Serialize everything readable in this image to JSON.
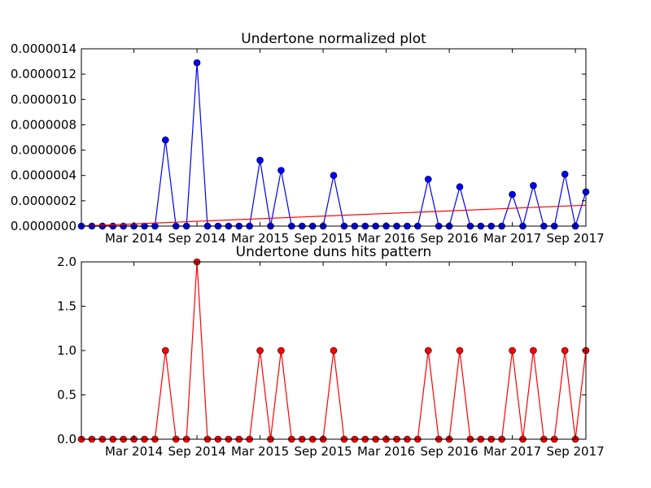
{
  "chart_data": [
    {
      "type": "line",
      "title": "Undertone normalized plot",
      "xlabel": "",
      "ylabel": "",
      "x_unit": "month",
      "xlim": [
        "2013-10",
        "2017-10"
      ],
      "ylim": [
        0,
        1.4e-06
      ],
      "grid": false,
      "yticks": [
        {
          "value": 0,
          "label": "0.0000000"
        },
        {
          "value": 2e-07,
          "label": "0.0000002"
        },
        {
          "value": 4e-07,
          "label": "0.0000004"
        },
        {
          "value": 6e-07,
          "label": "0.0000006"
        },
        {
          "value": 8e-07,
          "label": "0.0000008"
        },
        {
          "value": 1e-06,
          "label": "0.0000010"
        },
        {
          "value": 1.2e-06,
          "label": "0.0000012"
        },
        {
          "value": 1.4e-06,
          "label": "0.0000014"
        }
      ],
      "xticks": [
        {
          "value": "2014-03",
          "label": "Mar 2014"
        },
        {
          "value": "2014-09",
          "label": "Sep 2014"
        },
        {
          "value": "2015-03",
          "label": "Mar 2015"
        },
        {
          "value": "2015-09",
          "label": "Sep 2015"
        },
        {
          "value": "2016-03",
          "label": "Mar 2016"
        },
        {
          "value": "2016-09",
          "label": "Sep 2016"
        },
        {
          "value": "2017-03",
          "label": "Mar 2017"
        },
        {
          "value": "2017-09",
          "label": "Sep 2017"
        }
      ],
      "series": [
        {
          "color": "#0000ff",
          "marker": "circle",
          "points": [
            [
              "2013-10",
              0
            ],
            [
              "2013-11",
              0
            ],
            [
              "2013-12",
              0
            ],
            [
              "2014-01",
              0
            ],
            [
              "2014-02",
              0
            ],
            [
              "2014-03",
              0
            ],
            [
              "2014-04",
              0
            ],
            [
              "2014-05",
              0
            ],
            [
              "2014-06",
              6.8e-07
            ],
            [
              "2014-07",
              0
            ],
            [
              "2014-08",
              0
            ],
            [
              "2014-09",
              1.29e-06
            ],
            [
              "2014-10",
              0
            ],
            [
              "2014-11",
              0
            ],
            [
              "2014-12",
              0
            ],
            [
              "2015-01",
              0
            ],
            [
              "2015-02",
              0
            ],
            [
              "2015-03",
              5.2e-07
            ],
            [
              "2015-04",
              0
            ],
            [
              "2015-05",
              4.4e-07
            ],
            [
              "2015-06",
              0
            ],
            [
              "2015-07",
              0
            ],
            [
              "2015-08",
              0
            ],
            [
              "2015-09",
              0
            ],
            [
              "2015-10",
              4e-07
            ],
            [
              "2015-11",
              0
            ],
            [
              "2015-12",
              0
            ],
            [
              "2016-01",
              0
            ],
            [
              "2016-02",
              0
            ],
            [
              "2016-03",
              0
            ],
            [
              "2016-04",
              0
            ],
            [
              "2016-05",
              0
            ],
            [
              "2016-06",
              0
            ],
            [
              "2016-07",
              3.7e-07
            ],
            [
              "2016-08",
              0
            ],
            [
              "2016-09",
              0
            ],
            [
              "2016-10",
              3.1e-07
            ],
            [
              "2016-11",
              0
            ],
            [
              "2016-12",
              0
            ],
            [
              "2017-01",
              0
            ],
            [
              "2017-02",
              0
            ],
            [
              "2017-03",
              2.5e-07
            ],
            [
              "2017-04",
              0
            ],
            [
              "2017-05",
              3.2e-07
            ],
            [
              "2017-06",
              0
            ],
            [
              "2017-07",
              0
            ],
            [
              "2017-08",
              4.1e-07
            ],
            [
              "2017-09",
              0
            ],
            [
              "2017-10",
              2.7e-07
            ]
          ]
        },
        {
          "color": "#ff0000",
          "marker": "none",
          "points": [
            [
              "2013-10",
              0.0
            ],
            [
              "2017-10",
              1.65e-07
            ]
          ]
        }
      ]
    },
    {
      "type": "line",
      "title": "Undertone duns hits pattern",
      "xlabel": "",
      "ylabel": "",
      "x_unit": "month",
      "xlim": [
        "2013-10",
        "2017-10"
      ],
      "ylim": [
        0,
        2
      ],
      "grid": false,
      "yticks": [
        {
          "value": 0,
          "label": "0.0"
        },
        {
          "value": 0.5,
          "label": "0.5"
        },
        {
          "value": 1,
          "label": "1.0"
        },
        {
          "value": 1.5,
          "label": "1.5"
        },
        {
          "value": 2,
          "label": "2.0"
        }
      ],
      "xticks": [
        {
          "value": "2014-03",
          "label": "Mar 2014"
        },
        {
          "value": "2014-09",
          "label": "Sep 2014"
        },
        {
          "value": "2015-03",
          "label": "Mar 2015"
        },
        {
          "value": "2015-09",
          "label": "Sep 2015"
        },
        {
          "value": "2016-03",
          "label": "Mar 2016"
        },
        {
          "value": "2016-09",
          "label": "Sep 2016"
        },
        {
          "value": "2017-03",
          "label": "Mar 2017"
        },
        {
          "value": "2017-09",
          "label": "Sep 2017"
        }
      ],
      "series": [
        {
          "color": "#ff0000",
          "marker": "circle",
          "points": [
            [
              "2013-10",
              0
            ],
            [
              "2013-11",
              0
            ],
            [
              "2013-12",
              0
            ],
            [
              "2014-01",
              0
            ],
            [
              "2014-02",
              0
            ],
            [
              "2014-03",
              0
            ],
            [
              "2014-04",
              0
            ],
            [
              "2014-05",
              0
            ],
            [
              "2014-06",
              1
            ],
            [
              "2014-07",
              0
            ],
            [
              "2014-08",
              0
            ],
            [
              "2014-09",
              2
            ],
            [
              "2014-10",
              0
            ],
            [
              "2014-11",
              0
            ],
            [
              "2014-12",
              0
            ],
            [
              "2015-01",
              0
            ],
            [
              "2015-02",
              0
            ],
            [
              "2015-03",
              1
            ],
            [
              "2015-04",
              0
            ],
            [
              "2015-05",
              1
            ],
            [
              "2015-06",
              0
            ],
            [
              "2015-07",
              0
            ],
            [
              "2015-08",
              0
            ],
            [
              "2015-09",
              0
            ],
            [
              "2015-10",
              1
            ],
            [
              "2015-11",
              0
            ],
            [
              "2015-12",
              0
            ],
            [
              "2016-01",
              0
            ],
            [
              "2016-02",
              0
            ],
            [
              "2016-03",
              0
            ],
            [
              "2016-04",
              0
            ],
            [
              "2016-05",
              0
            ],
            [
              "2016-06",
              0
            ],
            [
              "2016-07",
              1
            ],
            [
              "2016-08",
              0
            ],
            [
              "2016-09",
              0
            ],
            [
              "2016-10",
              1
            ],
            [
              "2016-11",
              0
            ],
            [
              "2016-12",
              0
            ],
            [
              "2017-01",
              0
            ],
            [
              "2017-02",
              0
            ],
            [
              "2017-03",
              1
            ],
            [
              "2017-04",
              0
            ],
            [
              "2017-05",
              1
            ],
            [
              "2017-06",
              0
            ],
            [
              "2017-07",
              0
            ],
            [
              "2017-08",
              1
            ],
            [
              "2017-09",
              0
            ],
            [
              "2017-10",
              1
            ]
          ]
        }
      ]
    }
  ]
}
